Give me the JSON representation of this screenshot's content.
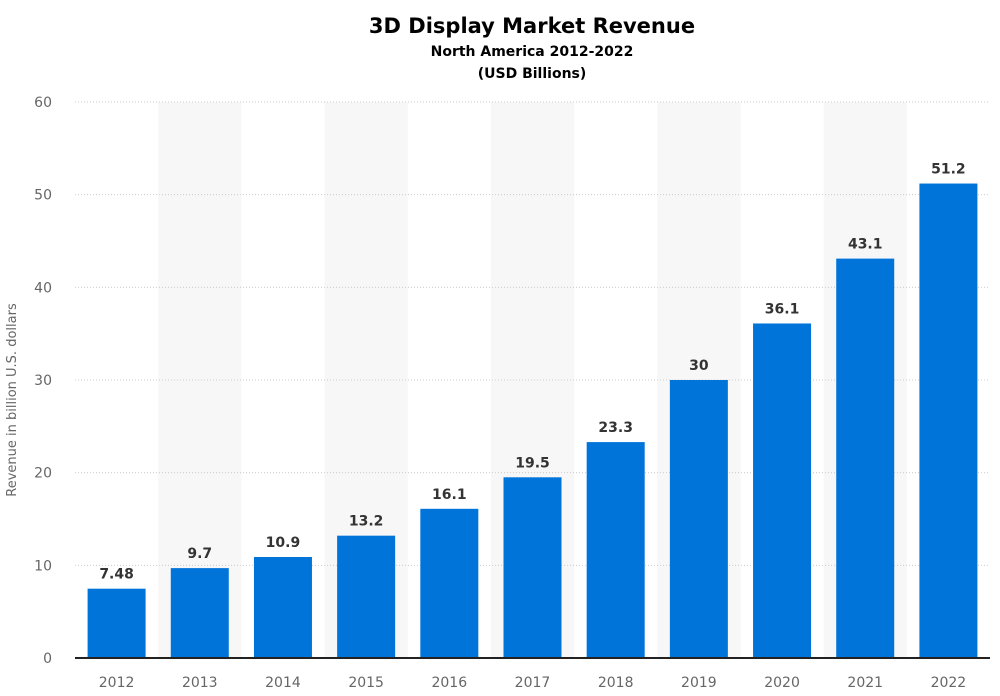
{
  "chart_data": {
    "type": "bar",
    "title": "3D Display Market Revenue",
    "subtitle": "North America 2012-2022",
    "subtitle2": "(USD Billions)",
    "ylabel": "Revenue in billion U.S. dollars",
    "xlabel": "",
    "categories": [
      "2012",
      "2013",
      "2014",
      "2015",
      "2016",
      "2017",
      "2018",
      "2019",
      "2020",
      "2021",
      "2022"
    ],
    "values": [
      7.48,
      9.7,
      10.9,
      13.2,
      16.1,
      19.5,
      23.3,
      30,
      36.1,
      43.1,
      51.2
    ],
    "data_labels": [
      "7.48",
      "9.7",
      "10.9",
      "13.2",
      "16.1",
      "19.5",
      "23.3",
      "30",
      "36.1",
      "43.1",
      "51.2"
    ],
    "ylim": [
      0,
      60
    ],
    "yticks": [
      0,
      10,
      20,
      30,
      40,
      50,
      60
    ],
    "grid": true,
    "alternating_bands": true,
    "colors": {
      "bar": "#0074d9",
      "band": "#f7f7f7",
      "grid": "#cccccc"
    }
  }
}
